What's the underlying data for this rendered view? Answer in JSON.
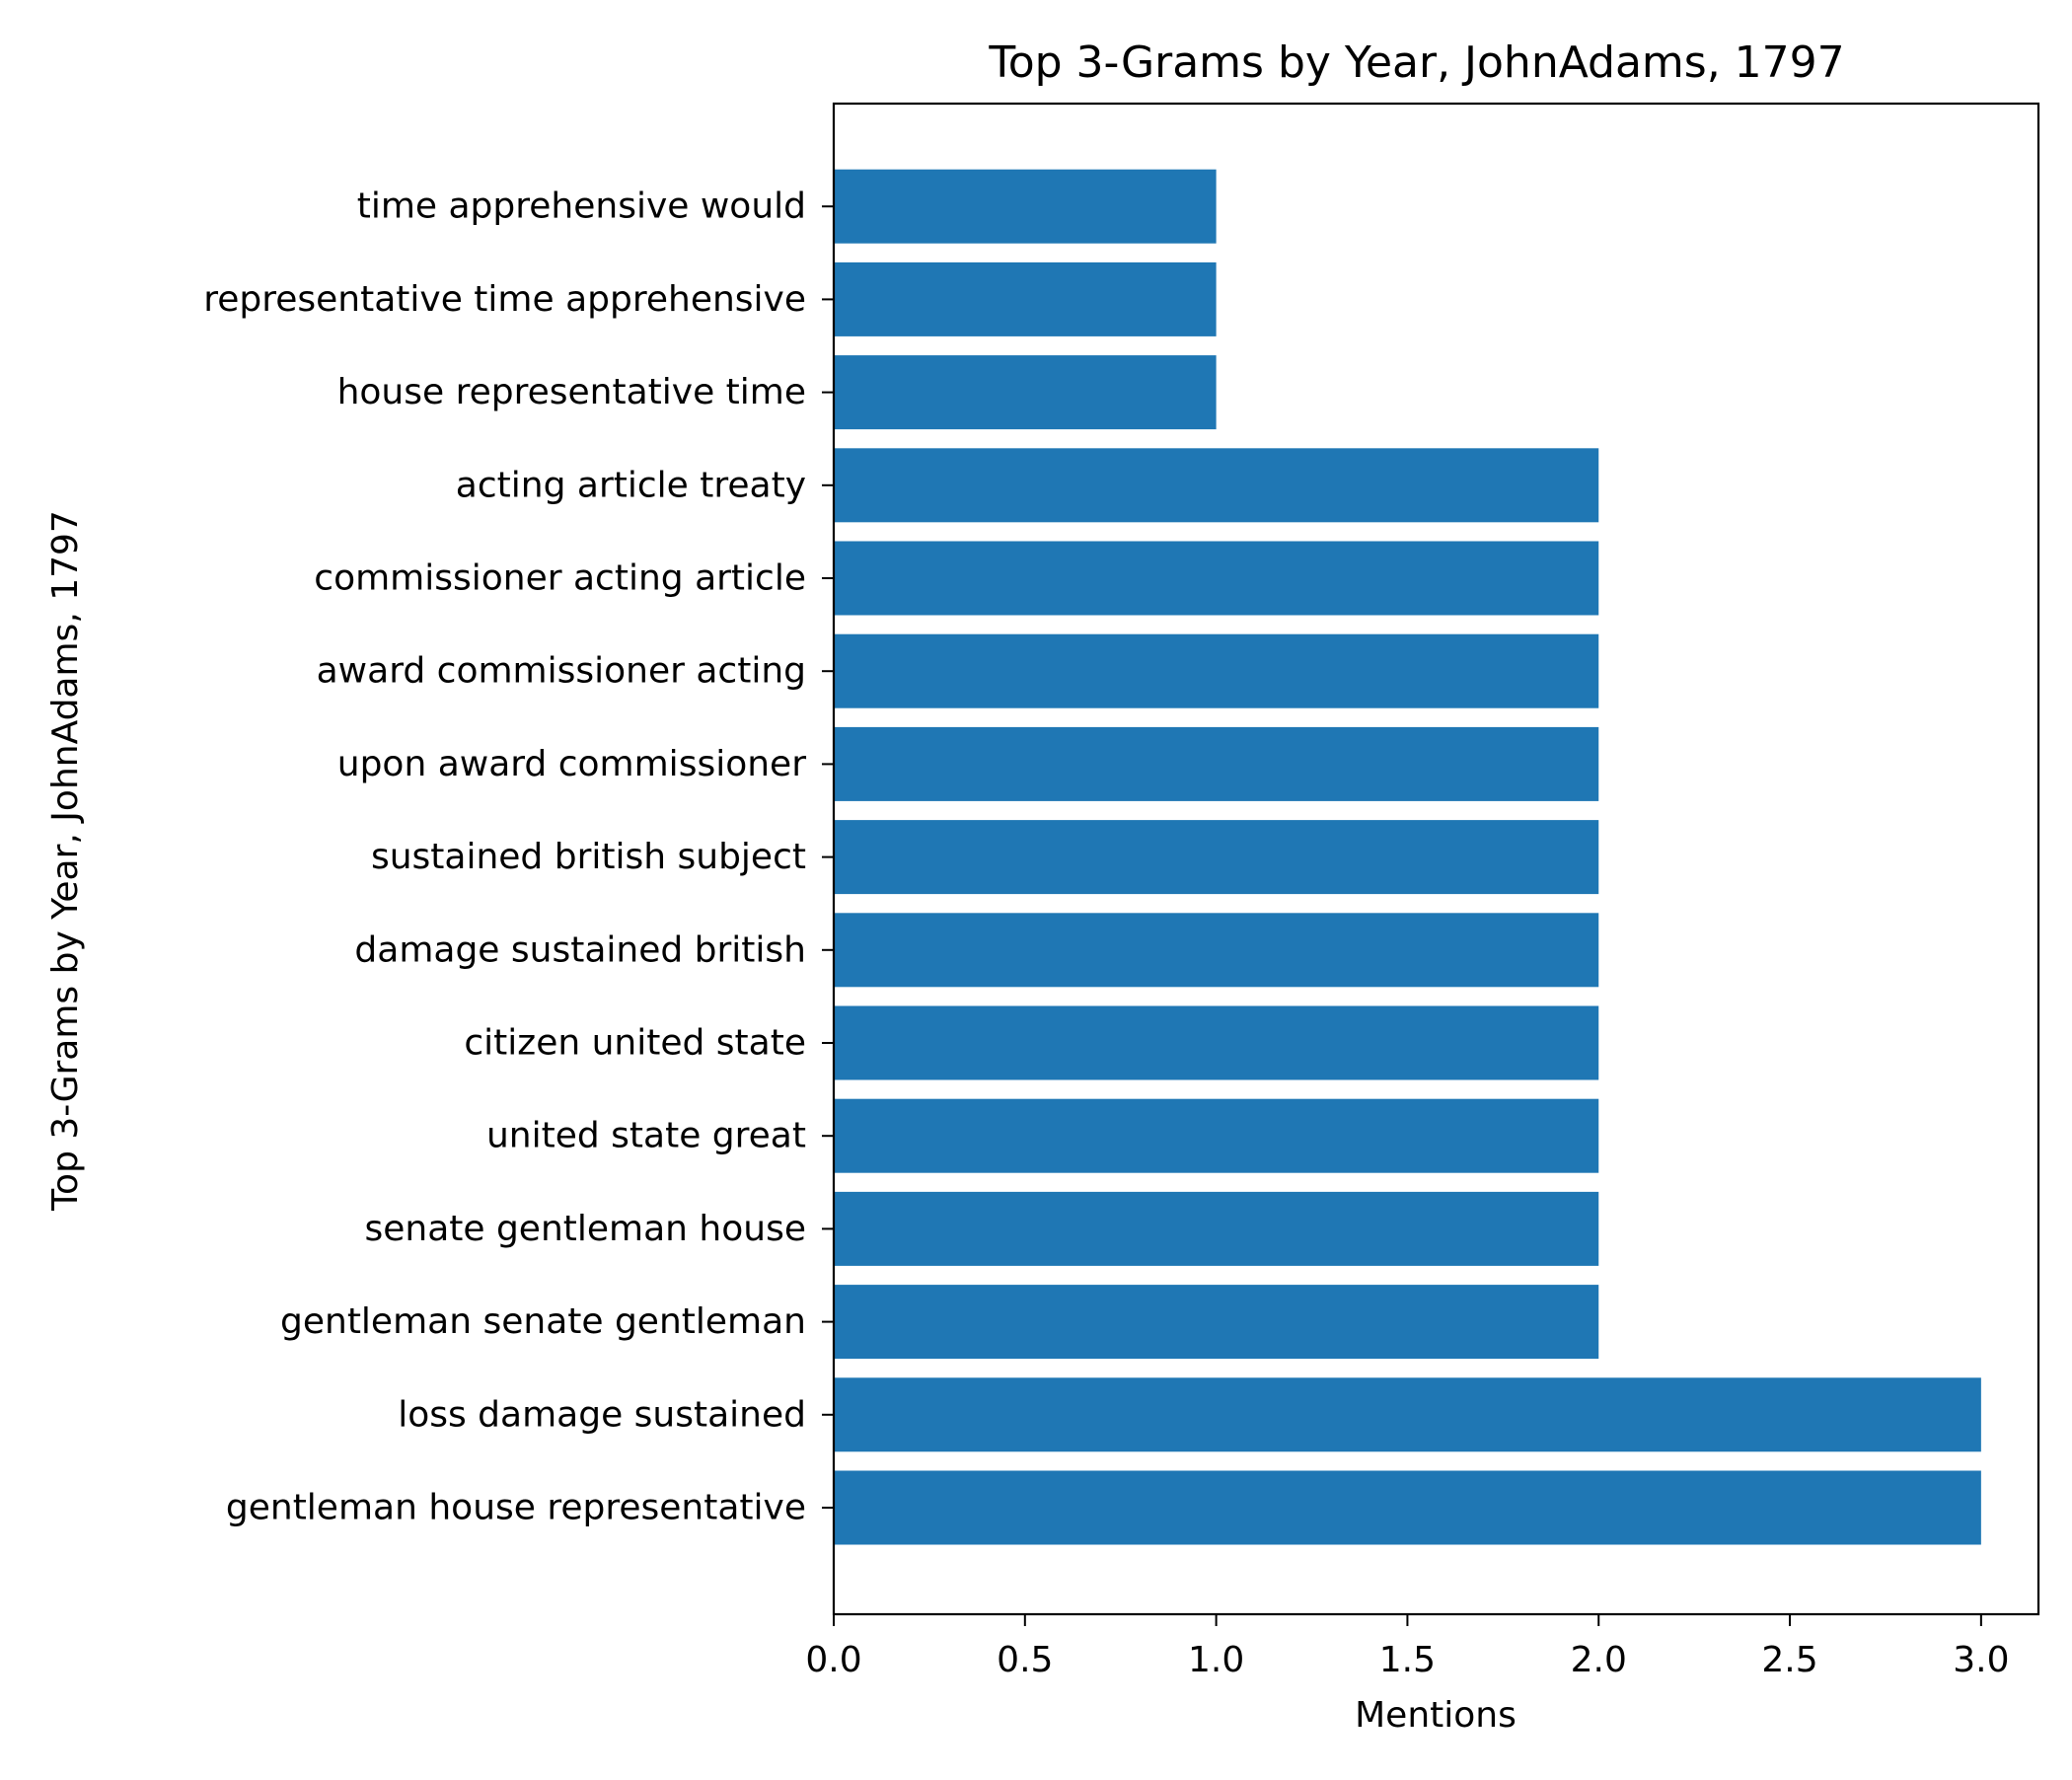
{
  "chart_data": {
    "type": "bar",
    "orientation": "horizontal",
    "title": "Top 3-Grams by Year, JohnAdams, 1797",
    "xlabel": "Mentions",
    "ylabel": "Top 3-Grams by Year, JohnAdams, 1797",
    "xlim": [
      0,
      3.15
    ],
    "xticks": [
      0.0,
      0.5,
      1.0,
      1.5,
      2.0,
      2.5,
      3.0
    ],
    "xtick_labels": [
      "0.0",
      "0.5",
      "1.0",
      "1.5",
      "2.0",
      "2.5",
      "3.0"
    ],
    "grid": false,
    "legend": false,
    "bar_color": "#1f77b4",
    "categories": [
      "gentleman house representative",
      "loss damage sustained",
      "gentleman senate gentleman",
      "senate gentleman house",
      "united state great",
      "citizen united state",
      "damage sustained british",
      "sustained british subject",
      "upon award commissioner",
      "award commissioner acting",
      "commissioner acting article",
      "acting article treaty",
      "house representative time",
      "representative time apprehensive",
      "time apprehensive would"
    ],
    "values": [
      3,
      3,
      2,
      2,
      2,
      2,
      2,
      2,
      2,
      2,
      2,
      2,
      1,
      1,
      1
    ]
  }
}
